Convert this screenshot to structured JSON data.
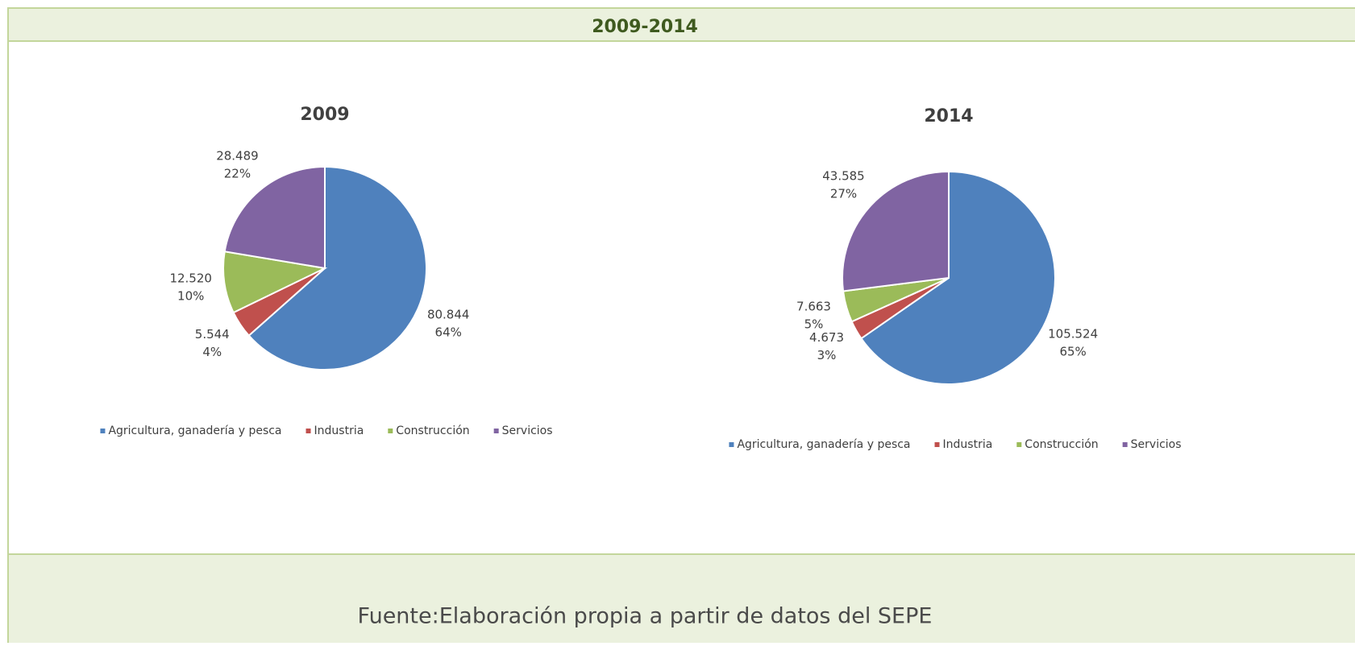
{
  "header": {
    "title": "2009-2014"
  },
  "chart_data": [
    {
      "type": "pie",
      "title": "2009",
      "categories": [
        "Agricultura, ganadería y pesca",
        "Industria",
        "Construcción",
        "Servicios"
      ],
      "values": [
        80844,
        5544,
        12520,
        28489
      ],
      "value_labels": [
        "80.844",
        "5.544",
        "12.520",
        "28.489"
      ],
      "percents": [
        64,
        4,
        10,
        22
      ],
      "percent_labels": [
        "64%",
        "4%",
        "10%",
        "22%"
      ],
      "colors": [
        "#4f81bd",
        "#c0504d",
        "#9bbb59",
        "#8064a2"
      ]
    },
    {
      "type": "pie",
      "title": "2014",
      "categories": [
        "Agricultura, ganadería y pesca",
        "Industria",
        "Construcción",
        "Servicios"
      ],
      "values": [
        105524,
        4673,
        7663,
        43585
      ],
      "value_labels": [
        "105.524",
        "4.673",
        "7.663",
        "43.585"
      ],
      "percents": [
        65,
        3,
        5,
        27
      ],
      "percent_labels": [
        "65%",
        "3%",
        "5%",
        "27%"
      ],
      "colors": [
        "#4f81bd",
        "#c0504d",
        "#9bbb59",
        "#8064a2"
      ]
    }
  ],
  "footer": {
    "source": "Fuente:Elaboración propia a partir de datos del SEPE"
  }
}
